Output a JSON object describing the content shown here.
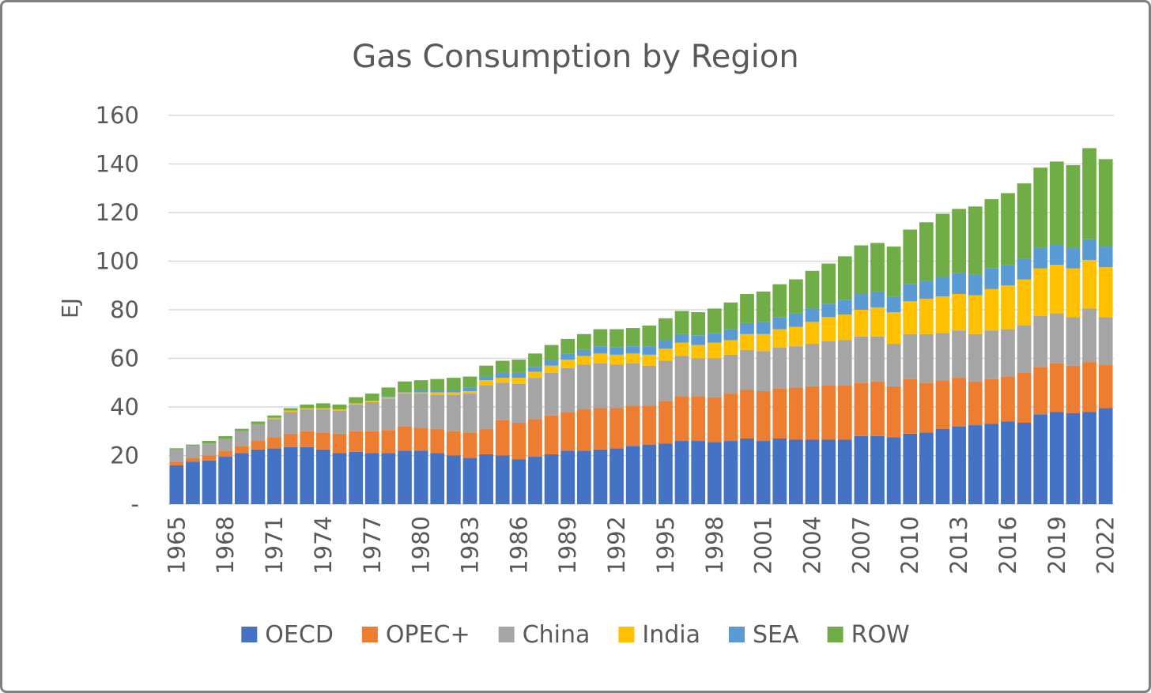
{
  "chart_data": {
    "type": "bar",
    "stacked": true,
    "title": "Gas Consumption by Region",
    "xlabel": "",
    "ylabel": "EJ",
    "ylim": [
      0,
      160
    ],
    "yticks": [
      "-",
      "20",
      "40",
      "60",
      "80",
      "100",
      "120",
      "140",
      "160"
    ],
    "grid": true,
    "legend_position": "bottom",
    "categories": [
      1965,
      1966,
      1967,
      1968,
      1969,
      1970,
      1971,
      1972,
      1973,
      1974,
      1975,
      1976,
      1977,
      1978,
      1979,
      1980,
      1981,
      1982,
      1983,
      1984,
      1985,
      1986,
      1987,
      1988,
      1989,
      1990,
      1991,
      1992,
      1993,
      1994,
      1995,
      1996,
      1997,
      1998,
      1999,
      2000,
      2001,
      2002,
      2003,
      2004,
      2005,
      2006,
      2007,
      2008,
      2009,
      2010,
      2011,
      2012,
      2013,
      2014,
      2015,
      2016,
      2017,
      2018,
      2019,
      2020,
      2021,
      2022
    ],
    "x_tick_labels": [
      "1965",
      "1968",
      "1971",
      "1974",
      "1977",
      "1980",
      "1983",
      "1986",
      "1989",
      "1992",
      "1995",
      "1998",
      "2001",
      "2004",
      "2007",
      "2010",
      "2013",
      "2016",
      "2019",
      "2022"
    ],
    "series": [
      {
        "name": "OECD",
        "color": "#4472C4",
        "values": [
          16,
          17.5,
          18,
          19.5,
          21,
          22.5,
          23,
          23.5,
          23.5,
          22.5,
          21,
          21.5,
          21,
          21,
          22,
          22,
          21,
          20,
          19,
          20.5,
          20,
          18.5,
          19.5,
          20.5,
          22,
          22,
          22.5,
          23,
          24,
          24.5,
          25,
          26,
          26,
          25.5,
          26,
          27,
          26,
          27,
          26.5,
          26.5,
          26.5,
          26.5,
          28,
          28,
          27.5,
          29,
          29.5,
          31,
          32,
          32.5,
          33,
          34,
          33.5,
          37,
          38,
          37.5,
          38,
          39.5
        ]
      },
      {
        "name": "OPEC+",
        "color": "#ED7D31",
        "values": [
          1.5,
          1.5,
          2,
          2.5,
          3,
          3.5,
          4.5,
          5.5,
          6.5,
          7,
          8,
          8.5,
          9,
          9.5,
          10,
          9.5,
          10,
          10,
          10.5,
          10.5,
          14.5,
          15,
          15.5,
          16,
          16,
          17,
          17,
          16.5,
          16.5,
          16,
          17.5,
          18.5,
          18.5,
          18.5,
          19.5,
          20,
          20.5,
          20.5,
          21.5,
          22,
          22.5,
          22.5,
          22,
          22.5,
          21,
          22.5,
          20.5,
          20,
          20,
          18,
          18.5,
          18.5,
          20.5,
          19.5,
          20,
          19.5,
          20.5,
          18
        ]
      },
      {
        "name": "China",
        "color": "#A5A5A5",
        "values": [
          5,
          5,
          5,
          5,
          6,
          7,
          7.5,
          9,
          9,
          9.5,
          9.5,
          11,
          12,
          13,
          13.5,
          14,
          14,
          15,
          16,
          18,
          15.5,
          16,
          17,
          17.5,
          18,
          18.5,
          18.5,
          18,
          17.5,
          16.5,
          16.5,
          16.5,
          15.5,
          16,
          16,
          16.5,
          16.5,
          17,
          17,
          17.5,
          18,
          18.5,
          19,
          18.5,
          17.5,
          18.5,
          20,
          19.5,
          19.5,
          19.5,
          20,
          19.5,
          19.5,
          21,
          20.5,
          20,
          22,
          19.5
        ]
      },
      {
        "name": "India",
        "color": "#FFC000",
        "values": [
          0,
          0,
          0,
          0,
          0,
          0,
          0.5,
          0.5,
          0.5,
          0.5,
          0.5,
          0.5,
          0.5,
          0.5,
          0.5,
          0.5,
          1,
          1,
          1,
          2,
          2,
          2.5,
          2.5,
          3,
          3.5,
          3.5,
          4,
          4,
          4,
          4.5,
          5,
          5.5,
          5.5,
          6.5,
          6,
          6.5,
          7,
          7.5,
          8,
          9,
          10,
          10.5,
          11,
          12,
          13,
          13.5,
          14.5,
          15,
          15,
          16,
          17,
          18,
          19,
          19.5,
          20,
          20,
          20,
          20.5
        ]
      },
      {
        "name": "SEA",
        "color": "#5B9BD5",
        "values": [
          0,
          0,
          0,
          0,
          0,
          0,
          0,
          0,
          0,
          0,
          0,
          0,
          0,
          0.5,
          0.5,
          1,
          1,
          1,
          1.5,
          1.5,
          2,
          2,
          2,
          2.5,
          2.5,
          2.5,
          3,
          3,
          3,
          3.5,
          3.5,
          3.5,
          4,
          4,
          4.5,
          4.5,
          5,
          5,
          5.5,
          5.5,
          5.5,
          6,
          6.5,
          6.5,
          6.5,
          7,
          7.5,
          8,
          8.5,
          8.5,
          8.5,
          8.5,
          8.5,
          8.5,
          8.5,
          8.5,
          8.5,
          8.5
        ]
      },
      {
        "name": "ROW",
        "color": "#70AD47",
        "values": [
          0.5,
          0.5,
          1,
          1,
          1,
          1,
          1,
          1,
          1.5,
          2,
          2,
          2.5,
          3,
          3.5,
          4,
          4,
          4.5,
          5,
          4.5,
          4.5,
          5,
          5.5,
          5.5,
          6,
          6,
          6.5,
          7,
          7.5,
          7.5,
          8.5,
          9,
          9.5,
          9.5,
          10,
          11,
          12,
          12.5,
          13.5,
          14,
          15.5,
          16.5,
          18,
          20,
          20,
          20.5,
          22.5,
          24,
          26,
          26.5,
          28,
          28.5,
          29.5,
          31,
          33,
          34,
          34,
          37.5,
          36
        ]
      }
    ]
  }
}
